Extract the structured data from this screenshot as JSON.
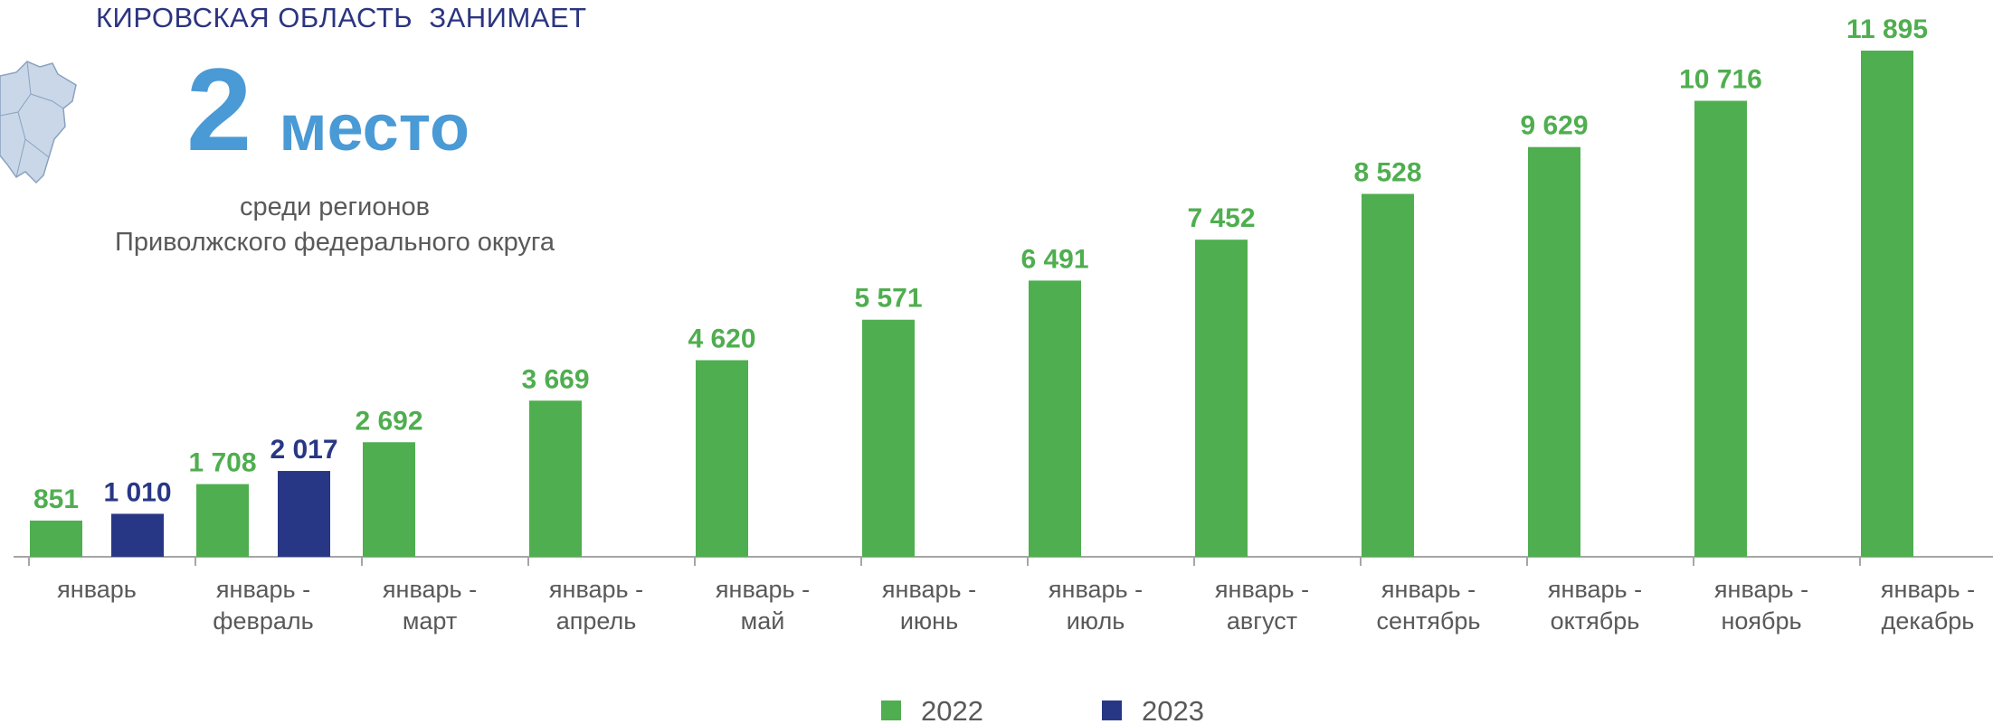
{
  "header": {
    "region_line": "КИРОВСКАЯ ОБЛАСТЬ  ЗАНИМАЕТ",
    "rank_number": "2",
    "rank_word": "место",
    "subtitle_line1": "среди регионов",
    "subtitle_line2": "Приволжского федерального округа"
  },
  "colors": {
    "series_2022": "#4fae4f",
    "series_2023": "#283785",
    "rank_text": "#4a9ad6",
    "header_text": "#2b3480",
    "axis_label": "#595959",
    "axis_line": "#a6a6a6",
    "map_fill": "#c9d7e8",
    "map_stroke": "#8aa2bf"
  },
  "icons": {
    "region_map": "kirov-region-map-icon"
  },
  "chart_data": {
    "type": "bar",
    "categories": [
      [
        "январь"
      ],
      [
        "январь -",
        "февраль"
      ],
      [
        "январь -",
        "март"
      ],
      [
        "январь -",
        "апрель"
      ],
      [
        "январь -",
        "май"
      ],
      [
        "январь -",
        "июнь"
      ],
      [
        "январь -",
        "июль"
      ],
      [
        "январь -",
        "август"
      ],
      [
        "январь -",
        "сентябрь"
      ],
      [
        "январь -",
        "октябрь"
      ],
      [
        "январь -",
        "ноябрь"
      ],
      [
        "январь -",
        "декабрь"
      ]
    ],
    "series": [
      {
        "name": "2022",
        "values": [
          851,
          1708,
          2692,
          3669,
          4620,
          5571,
          6491,
          7452,
          8528,
          9629,
          10716,
          11895
        ],
        "labels": [
          "851",
          "1 708",
          "2 692",
          "3 669",
          "4 620",
          "5 571",
          "6 491",
          "7 452",
          "8 528",
          "9 629",
          "10 716",
          "11 895"
        ]
      },
      {
        "name": "2023",
        "values": [
          1010,
          2017,
          null,
          null,
          null,
          null,
          null,
          null,
          null,
          null,
          null,
          null
        ],
        "labels": [
          "1 010",
          "2 017",
          "",
          "",
          "",
          "",
          "",
          "",
          "",
          "",
          "",
          ""
        ]
      }
    ],
    "ylim": [
      0,
      11895
    ],
    "grid": false,
    "legend_position": "bottom"
  }
}
